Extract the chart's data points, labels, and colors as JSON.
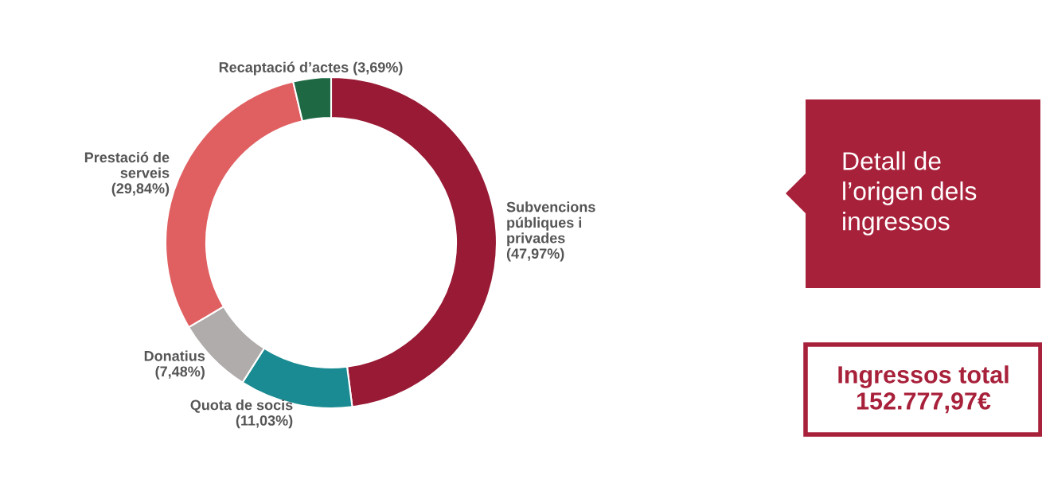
{
  "chart_data": {
    "type": "donut",
    "categories": [
      "Subvencions\npúbliques i\nprivades",
      "Quota de socis",
      "Donatius",
      "Prestació de\nserveis",
      "Recaptació d’actes"
    ],
    "values": [
      47.97,
      11.03,
      7.48,
      29.84,
      3.69
    ],
    "value_labels": [
      "(47,97%)",
      "(11,03%)",
      "(7,48%)",
      "(29,84%)",
      "(3,69%)"
    ],
    "colors": [
      "#981a35",
      "#1a8b92",
      "#b0acab",
      "#e06062",
      "#1e6944"
    ],
    "annotations": [
      "Detall de\nl’origen dels\ningressos",
      "Ingressos total\n152.777,97€"
    ]
  }
}
